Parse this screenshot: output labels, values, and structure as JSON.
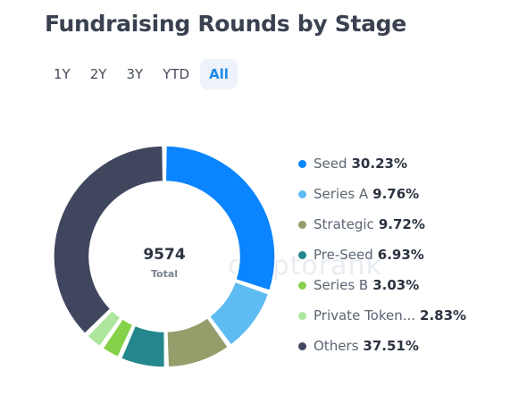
{
  "title": "Fundraising Rounds by Stage",
  "tabs": [
    {
      "label": "1Y",
      "active": false
    },
    {
      "label": "2Y",
      "active": false
    },
    {
      "label": "3Y",
      "active": false
    },
    {
      "label": "YTD",
      "active": false
    },
    {
      "label": "All",
      "active": true
    }
  ],
  "watermark": "cryptorank",
  "chart_data": {
    "type": "pie",
    "style": "donut",
    "total_value": "9574",
    "total_label": "Total",
    "categories": [
      "Seed",
      "Series A",
      "Strategic",
      "Pre-Seed",
      "Series B",
      "Private Token...",
      "Others"
    ],
    "values": [
      30.23,
      9.76,
      9.72,
      6.93,
      3.03,
      2.83,
      37.51
    ],
    "value_labels": [
      "30.23%",
      "9.76%",
      "9.72%",
      "6.93%",
      "3.03%",
      "2.83%",
      "37.51%"
    ],
    "colors": [
      "#0a84ff",
      "#5ebcf2",
      "#969c6a",
      "#23878d",
      "#86d14a",
      "#ade69c",
      "#40465d"
    ],
    "legend_position": "right"
  }
}
